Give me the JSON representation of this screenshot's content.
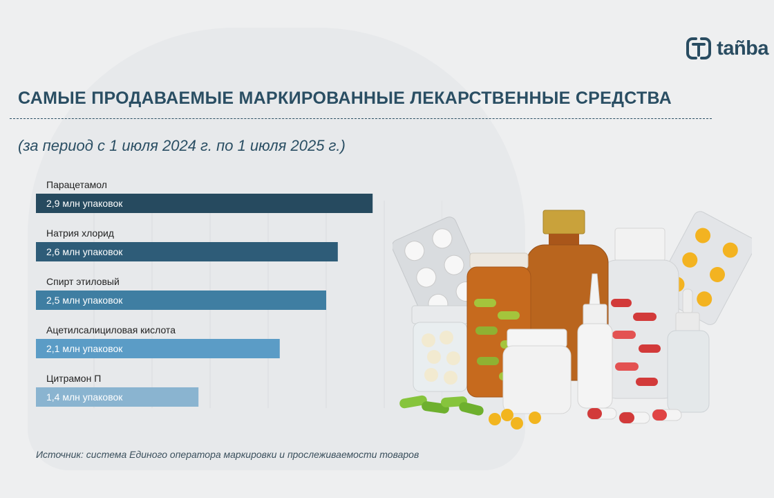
{
  "brand": {
    "name": "tañba",
    "logo_icon": "tanba-logo-icon",
    "color": "#294c61"
  },
  "title": "САМЫЕ ПРОДАВАЕМЫЕ МАРКИРОВАННЫЕ ЛЕКАРСТВЕННЫЕ СРЕДСТВА",
  "subtitle": "(за период с 1 июля 2024 г. по 1 июля 2025 г.)",
  "source": "Источник: система Единого оператора маркировки и прослеживаемости товаров",
  "chart_data": {
    "type": "bar",
    "orientation": "horizontal",
    "unit": "млн упаковок",
    "grid": true,
    "legend": "none",
    "xlim": [
      0,
      3.5
    ],
    "categories": [
      "Парацетамол",
      "Натрия хлорид",
      "Спирт этиловый",
      "Ацетилсалициловая кислота",
      "Цитрамон П"
    ],
    "values": [
      2.9,
      2.6,
      2.5,
      2.1,
      1.4
    ],
    "value_labels": [
      "2,9 млн упаковок",
      "2,6 млн упаковок",
      "2,5 млн упаковок",
      "2,1 млн упаковок",
      "1,4 млн упаковок"
    ],
    "colors": [
      "#264a5f",
      "#2e5c78",
      "#3f7ea2",
      "#5b9cc6",
      "#8ab4d0"
    ]
  }
}
